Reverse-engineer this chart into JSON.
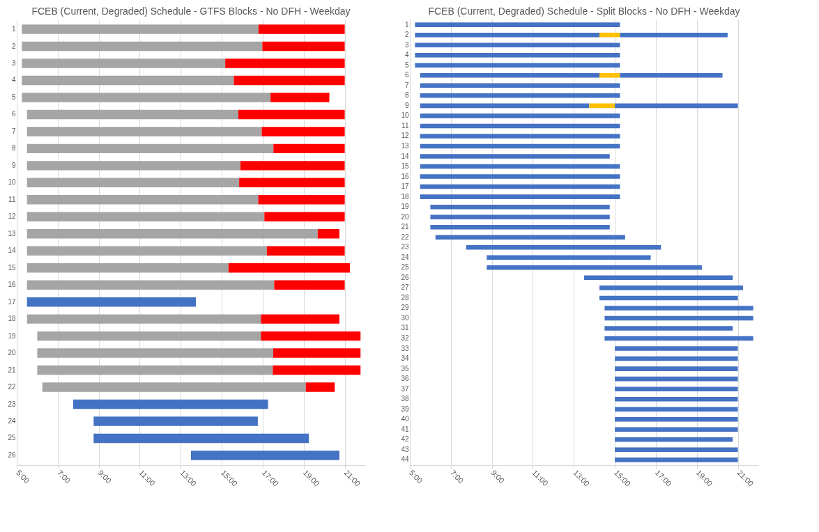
{
  "chart_data": [
    {
      "type": "bar",
      "orientation": "horizontal",
      "title": "FCEB (Current, Degraded) Schedule - GTFS Blocks - No DFH - Weekday",
      "categories": [
        "1",
        "2",
        "3",
        "4",
        "5",
        "6",
        "7",
        "8",
        "9",
        "10",
        "11",
        "12",
        "13",
        "14",
        "15",
        "16",
        "17",
        "18",
        "19",
        "20",
        "21",
        "22",
        "23",
        "24",
        "25",
        "26"
      ],
      "series": [
        {
          "color": "#a5a5a5",
          "base": [
            5.25,
            5.25,
            5.25,
            5.25,
            5.25,
            5.5,
            5.5,
            5.5,
            5.5,
            5.5,
            5.5,
            5.5,
            5.5,
            5.5,
            5.5,
            5.5,
            null,
            5.5,
            6,
            6,
            6,
            6.25,
            null,
            null,
            null,
            null
          ],
          "values": [
            11.54,
            11.73,
            9.92,
            10.34,
            12.13,
            10.31,
            11.45,
            12.02,
            10.41,
            10.35,
            11.28,
            11.58,
            14.18,
            11.7,
            9.83,
            12.06,
            null,
            11.41,
            10.91,
            11.51,
            11.49,
            12.85,
            null,
            null,
            null,
            null
          ]
        },
        {
          "color": "#ff0000",
          "base": [
            16.79,
            16.98,
            15.17,
            15.59,
            17.38,
            15.81,
            16.95,
            17.52,
            15.91,
            15.85,
            16.78,
            17.08,
            19.68,
            17.2,
            15.33,
            17.56,
            null,
            16.91,
            16.91,
            17.51,
            17.49,
            19.1,
            null,
            null,
            null,
            null
          ],
          "values": [
            4.21,
            4.02,
            5.83,
            5.41,
            2.87,
            5.19,
            4.05,
            3.48,
            5.09,
            5.15,
            4.22,
            3.92,
            1.06,
            3.8,
            5.92,
            3.44,
            null,
            3.83,
            4.86,
            4.26,
            4.28,
            1.41,
            null,
            null,
            null,
            null
          ]
        },
        {
          "color": "#4472c4",
          "base": [
            null,
            null,
            null,
            null,
            null,
            null,
            null,
            null,
            null,
            null,
            null,
            null,
            null,
            null,
            null,
            null,
            5.5,
            null,
            null,
            null,
            null,
            null,
            7.75,
            8.75,
            8.75,
            13.5
          ],
          "values": [
            null,
            null,
            null,
            null,
            null,
            null,
            null,
            null,
            null,
            null,
            null,
            null,
            null,
            null,
            null,
            null,
            8.24,
            null,
            null,
            null,
            null,
            null,
            9.51,
            8.01,
            10.5,
            7.24
          ]
        }
      ],
      "xlim": [
        5,
        22
      ],
      "xticks": [
        {
          "value": 5,
          "label": "5:00"
        },
        {
          "value": 7,
          "label": "7:00"
        },
        {
          "value": 9,
          "label": "9:00"
        },
        {
          "value": 11,
          "label": "11:00"
        },
        {
          "value": 13,
          "label": "13:00"
        },
        {
          "value": 15,
          "label": "15:00"
        },
        {
          "value": 17,
          "label": "17:00"
        },
        {
          "value": 19,
          "label": "19:00"
        },
        {
          "value": 21,
          "label": "21:00"
        }
      ],
      "grid": "x",
      "legend": false
    },
    {
      "type": "bar",
      "orientation": "horizontal",
      "title": "FCEB (Current, Degraded) Schedule - Split Blocks - No DFH - Weekday",
      "categories": [
        "1",
        "2",
        "3",
        "4",
        "5",
        "6",
        "7",
        "8",
        "9",
        "10",
        "11",
        "12",
        "13",
        "14",
        "15",
        "16",
        "17",
        "18",
        "19",
        "20",
        "21",
        "22",
        "23",
        "24",
        "25",
        "26",
        "27",
        "28",
        "29",
        "30",
        "31",
        "32",
        "33",
        "34",
        "35",
        "36",
        "37",
        "38",
        "39",
        "40",
        "41",
        "42",
        "43",
        "44"
      ],
      "series": [
        {
          "color": "#4472c4",
          "base": [
            5.25,
            5.25,
            5.25,
            5.25,
            5.25,
            5.5,
            5.5,
            5.5,
            5.5,
            5.5,
            5.5,
            5.5,
            5.5,
            5.5,
            5.5,
            5.5,
            5.5,
            5.5,
            6,
            6,
            6,
            6.25,
            7.75,
            8.75,
            8.75,
            13.5,
            14.25,
            14.25,
            14.5,
            14.5,
            14.5,
            14.5,
            15,
            15,
            15,
            15,
            15,
            15,
            15,
            15,
            15,
            15,
            15,
            15
          ],
          "values": [
            10,
            9,
            10,
            10,
            10,
            8.75,
            9.75,
            9.75,
            8.25,
            9.75,
            9.75,
            9.75,
            9.75,
            9.25,
            9.75,
            9.75,
            9.75,
            9.75,
            8.75,
            8.75,
            8.75,
            9.25,
            9.5,
            8,
            10.5,
            7.25,
            7,
            6.75,
            7.25,
            7.25,
            6.25,
            7.25,
            6,
            6,
            6,
            6,
            6,
            6,
            6,
            6,
            6,
            5.75,
            6,
            6
          ]
        },
        {
          "color": "#ffc000",
          "base": [
            null,
            14.25,
            null,
            null,
            null,
            14.25,
            null,
            null,
            13.75,
            null,
            null,
            null,
            null,
            null,
            null,
            null,
            null,
            null,
            null,
            null,
            null,
            null,
            null,
            null,
            null,
            null,
            null,
            null,
            null,
            null,
            null,
            null,
            null,
            null,
            null,
            null,
            null,
            null,
            null,
            null,
            null,
            null,
            null,
            null
          ],
          "values": [
            null,
            1,
            null,
            null,
            null,
            1,
            null,
            null,
            1.25,
            null,
            null,
            null,
            null,
            null,
            null,
            null,
            null,
            null,
            null,
            null,
            null,
            null,
            null,
            null,
            null,
            null,
            null,
            null,
            null,
            null,
            null,
            null,
            null,
            null,
            null,
            null,
            null,
            null,
            null,
            null,
            null,
            null,
            null,
            null
          ]
        },
        {
          "color": "#4472c4",
          "base": [
            null,
            15.25,
            null,
            null,
            null,
            15.25,
            null,
            null,
            15,
            null,
            null,
            null,
            null,
            null,
            null,
            null,
            null,
            null,
            null,
            null,
            null,
            null,
            null,
            null,
            null,
            null,
            null,
            null,
            null,
            null,
            null,
            null,
            null,
            null,
            null,
            null,
            null,
            null,
            null,
            null,
            null,
            null,
            null,
            null
          ],
          "values": [
            null,
            5.25,
            null,
            null,
            null,
            5,
            null,
            null,
            6,
            null,
            null,
            null,
            null,
            null,
            null,
            null,
            null,
            null,
            null,
            null,
            null,
            null,
            null,
            null,
            null,
            null,
            null,
            null,
            null,
            null,
            null,
            null,
            null,
            null,
            null,
            null,
            null,
            null,
            null,
            null,
            null,
            null,
            null,
            null
          ]
        }
      ],
      "xlim": [
        5,
        22
      ],
      "xticks": [
        {
          "value": 5,
          "label": "5:00"
        },
        {
          "value": 7,
          "label": "7:00"
        },
        {
          "value": 9,
          "label": "9:00"
        },
        {
          "value": 11,
          "label": "11:00"
        },
        {
          "value": 13,
          "label": "13:00"
        },
        {
          "value": 15,
          "label": "15:00"
        },
        {
          "value": 17,
          "label": "17:00"
        },
        {
          "value": 19,
          "label": "19:00"
        },
        {
          "value": 21,
          "label": "21:00"
        }
      ],
      "grid": "x",
      "legend": false
    }
  ]
}
